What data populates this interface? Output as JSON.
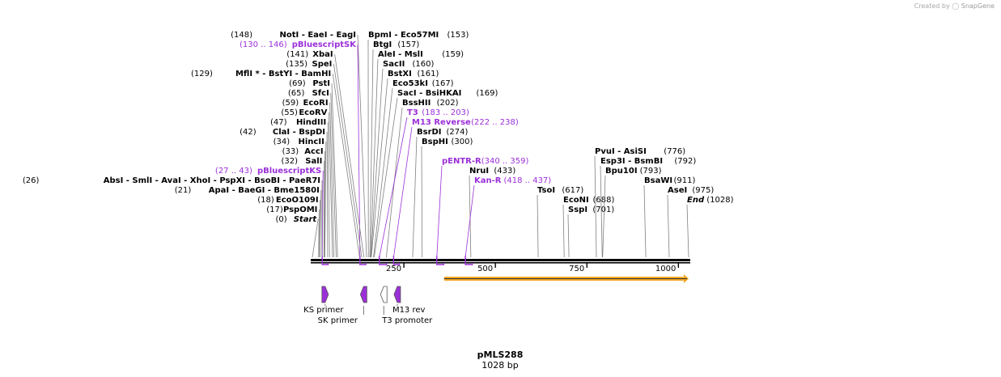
{
  "credit": {
    "prefix": "Created by",
    "brand": "SnapGene"
  },
  "plasmid": {
    "name": "pMLS288",
    "length_label": "1028 bp",
    "length_bp": 1028
  },
  "ruler": {
    "ticks": [
      250,
      500,
      750,
      1000
    ]
  },
  "sites": [
    {
      "pos": 148,
      "names": "NotI  - EaeI  - EagI",
      "pos_label": "(148)",
      "side": "left",
      "row": 0
    },
    {
      "pos": 130,
      "names": "pBluescriptSK",
      "pos_label": "(130 .. 146)",
      "side": "left",
      "row": 1,
      "purple": true
    },
    {
      "pos": 141,
      "names": "XbaI",
      "pos_label": "(141)",
      "side": "left",
      "row": 2
    },
    {
      "pos": 135,
      "names": "SpeI",
      "pos_label": "(135)",
      "side": "left",
      "row": 3
    },
    {
      "pos": 129,
      "names": "MflI * - BstYI  - BamHI",
      "pos_label": "(129)",
      "side": "left",
      "row": 4
    },
    {
      "pos": 69,
      "names": "PstI",
      "pos_label": "(69)",
      "side": "left",
      "row": 5
    },
    {
      "pos": 65,
      "names": "SfcI",
      "pos_label": "(65)",
      "side": "left",
      "row": 6
    },
    {
      "pos": 59,
      "names": "EcoRI",
      "pos_label": "(59)",
      "side": "left",
      "row": 7
    },
    {
      "pos": 55,
      "names": "EcoRV",
      "pos_label": "(55)",
      "side": "left",
      "row": 8
    },
    {
      "pos": 47,
      "names": "HindIII",
      "pos_label": "(47)",
      "side": "left",
      "row": 9
    },
    {
      "pos": 42,
      "names": "ClaI  - BspDI",
      "pos_label": "(42)",
      "side": "left",
      "row": 10
    },
    {
      "pos": 34,
      "names": "HincII",
      "pos_label": "(34)",
      "side": "left",
      "row": 11
    },
    {
      "pos": 33,
      "names": "AccI",
      "pos_label": "(33)",
      "side": "left",
      "row": 12
    },
    {
      "pos": 32,
      "names": "SalI",
      "pos_label": "(32)",
      "side": "left",
      "row": 13
    },
    {
      "pos": 27,
      "names": "pBluescriptKS",
      "pos_label": "(27 .. 43)",
      "side": "left",
      "row": 14,
      "purple": true
    },
    {
      "pos": 26,
      "names": "AbsI  - SmlI  - AvaI  - XhoI  - PspXI  - BsoBI  - PaeR7I",
      "pos_label": "(26)",
      "side": "left",
      "row": 15
    },
    {
      "pos": 21,
      "names": "ApaI  - BaeGI  - Bme1580I",
      "pos_label": "(21)",
      "side": "left",
      "row": 16
    },
    {
      "pos": 18,
      "names": "EcoO109I",
      "pos_label": "(18)",
      "side": "left",
      "row": 17
    },
    {
      "pos": 17,
      "names": "PspOMI",
      "pos_label": "(17)",
      "side": "left",
      "row": 18
    },
    {
      "pos": 0,
      "names": "Start",
      "pos_label": "(0)",
      "side": "left",
      "row": 19,
      "italic": true
    },
    {
      "pos": 153,
      "names": "BpmI  - Eco57MI",
      "pos_label": "(153)",
      "side": "right",
      "row": 0
    },
    {
      "pos": 157,
      "names": "BtgI",
      "pos_label": "(157)",
      "side": "right",
      "row": 1
    },
    {
      "pos": 159,
      "names": "AleI  - MslI",
      "pos_label": "(159)",
      "side": "right",
      "row": 2
    },
    {
      "pos": 160,
      "names": "SacII",
      "pos_label": "(160)",
      "side": "right",
      "row": 3
    },
    {
      "pos": 161,
      "names": "BstXI",
      "pos_label": "(161)",
      "side": "right",
      "row": 4
    },
    {
      "pos": 167,
      "names": "Eco53kI",
      "pos_label": "(167)",
      "side": "right",
      "row": 5
    },
    {
      "pos": 169,
      "names": "SacI  - BsiHKAI",
      "pos_label": "(169)",
      "side": "right",
      "row": 6
    },
    {
      "pos": 202,
      "names": "BssHII",
      "pos_label": "(202)",
      "side": "right",
      "row": 7
    },
    {
      "pos": 183,
      "names": "T3",
      "pos_label": "(183 .. 203)",
      "side": "right",
      "row": 8,
      "purple": true
    },
    {
      "pos": 222,
      "names": "M13 Reverse",
      "pos_label": "(222 .. 238)",
      "side": "right",
      "row": 9,
      "purple": true
    },
    {
      "pos": 274,
      "names": "BsrDI",
      "pos_label": "(274)",
      "side": "right",
      "row": 10
    },
    {
      "pos": 300,
      "names": "BspHI",
      "pos_label": "(300)",
      "side": "right",
      "row": 11
    },
    {
      "pos": 340,
      "names": "pENTR-R",
      "pos_label": "(340 .. 359)",
      "side": "right",
      "row": 13,
      "purple": true
    },
    {
      "pos": 433,
      "names": "NruI",
      "pos_label": "(433)",
      "side": "right",
      "row": 14
    },
    {
      "pos": 418,
      "names": "Kan-R",
      "pos_label": "(418 .. 437)",
      "side": "right",
      "row": 15,
      "purple": true
    },
    {
      "pos": 617,
      "names": "TsoI",
      "pos_label": "(617)",
      "side": "right",
      "row": 16
    },
    {
      "pos": 688,
      "names": "EcoNI",
      "pos_label": "(688)",
      "side": "right",
      "row": 17
    },
    {
      "pos": 701,
      "names": "SspI",
      "pos_label": "(701)",
      "side": "right",
      "row": 18
    },
    {
      "pos": 776,
      "names": "PvuI  - AsiSI",
      "pos_label": "(776)",
      "side": "right",
      "row": 12
    },
    {
      "pos": 792,
      "names": "Esp3I  - BsmBI",
      "pos_label": "(792)",
      "side": "right",
      "row": 13
    },
    {
      "pos": 793,
      "names": "Bpu10I",
      "pos_label": "(793)",
      "side": "right",
      "row": 14
    },
    {
      "pos": 911,
      "names": "BsaWI",
      "pos_label": "(911)",
      "side": "right",
      "row": 15
    },
    {
      "pos": 975,
      "names": "AseI",
      "pos_label": "(975)",
      "side": "right",
      "row": 16
    },
    {
      "pos": 1028,
      "names": "End",
      "pos_label": "(1028)",
      "side": "right",
      "row": 17,
      "italic": true
    }
  ],
  "primer_marks": [
    {
      "start": 27,
      "end": 43
    },
    {
      "start": 130,
      "end": 146
    },
    {
      "start": 183,
      "end": 203
    },
    {
      "start": 222,
      "end": 238
    },
    {
      "start": 340,
      "end": 359
    },
    {
      "start": 418,
      "end": 437
    }
  ],
  "features": [
    {
      "name": "KS primer",
      "pos": 35,
      "dir": "right",
      "filled": true
    },
    {
      "name": "SK primer",
      "pos": 140,
      "dir": "left",
      "filled": true
    },
    {
      "name": "T3 promoter",
      "pos": 195,
      "dir": "left",
      "filled": false
    },
    {
      "name": "M13 rev",
      "pos": 232,
      "dir": "left",
      "filled": true
    }
  ],
  "orf": {
    "start": 360,
    "end": 1028,
    "color": "#f5a623"
  },
  "colors": {
    "backbone": "#000000",
    "purple": "#9b30d9",
    "leader": "#808080"
  }
}
